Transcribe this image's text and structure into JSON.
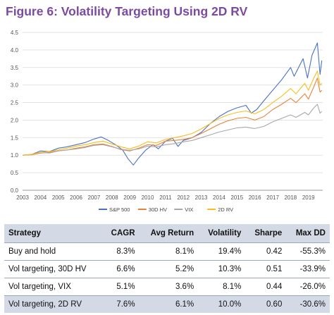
{
  "figure_title": "Figure 6: Volatility Targeting Using 2D RV",
  "chart_data": {
    "type": "line",
    "x_ticks": [
      "2003",
      "2004",
      "2005",
      "2006",
      "2007",
      "2008",
      "2009",
      "2010",
      "2011",
      "2012",
      "2013",
      "2014",
      "2015",
      "2016",
      "2017",
      "2018",
      "2019"
    ],
    "y_ticks": [
      "0.0",
      "0.5",
      "1.0",
      "1.5",
      "2.0",
      "2.5",
      "3.0",
      "3.5",
      "4.0",
      "4.5"
    ],
    "xlim": [
      2003,
      2019.8
    ],
    "ylim": [
      0,
      4.5
    ],
    "grid": "horizontal",
    "legend_position": "bottom-center",
    "series": [
      {
        "name": "S&P 500",
        "color": "#4a72c4",
        "width": 1.1,
        "points": [
          [
            2003,
            1.0
          ],
          [
            2003.5,
            1.02
          ],
          [
            2004,
            1.12
          ],
          [
            2004.5,
            1.1
          ],
          [
            2005,
            1.2
          ],
          [
            2005.5,
            1.24
          ],
          [
            2006,
            1.3
          ],
          [
            2006.5,
            1.36
          ],
          [
            2007,
            1.46
          ],
          [
            2007.4,
            1.52
          ],
          [
            2007.8,
            1.42
          ],
          [
            2008.2,
            1.3
          ],
          [
            2008.6,
            1.15
          ],
          [
            2008.9,
            0.9
          ],
          [
            2009.2,
            0.72
          ],
          [
            2009.5,
            0.92
          ],
          [
            2009.9,
            1.15
          ],
          [
            2010.3,
            1.3
          ],
          [
            2010.6,
            1.18
          ],
          [
            2011,
            1.4
          ],
          [
            2011.4,
            1.48
          ],
          [
            2011.7,
            1.25
          ],
          [
            2012,
            1.42
          ],
          [
            2012.5,
            1.5
          ],
          [
            2013,
            1.65
          ],
          [
            2013.5,
            1.9
          ],
          [
            2014,
            2.1
          ],
          [
            2014.5,
            2.25
          ],
          [
            2015,
            2.35
          ],
          [
            2015.5,
            2.42
          ],
          [
            2015.8,
            2.2
          ],
          [
            2016.1,
            2.3
          ],
          [
            2016.5,
            2.55
          ],
          [
            2017,
            2.85
          ],
          [
            2017.5,
            3.15
          ],
          [
            2018,
            3.5
          ],
          [
            2018.2,
            3.25
          ],
          [
            2018.7,
            3.75
          ],
          [
            2018.95,
            3.2
          ],
          [
            2019.2,
            3.85
          ],
          [
            2019.5,
            4.2
          ],
          [
            2019.65,
            3.3
          ],
          [
            2019.75,
            3.7
          ]
        ]
      },
      {
        "name": "30D HV",
        "color": "#e8823a",
        "width": 1.1,
        "points": [
          [
            2003,
            1.0
          ],
          [
            2003.5,
            1.01
          ],
          [
            2004,
            1.06
          ],
          [
            2004.5,
            1.08
          ],
          [
            2005,
            1.12
          ],
          [
            2005.5,
            1.15
          ],
          [
            2006,
            1.2
          ],
          [
            2006.5,
            1.24
          ],
          [
            2007,
            1.3
          ],
          [
            2007.5,
            1.32
          ],
          [
            2008,
            1.25
          ],
          [
            2008.5,
            1.16
          ],
          [
            2009,
            1.12
          ],
          [
            2009.5,
            1.2
          ],
          [
            2010,
            1.3
          ],
          [
            2010.5,
            1.28
          ],
          [
            2011,
            1.4
          ],
          [
            2011.5,
            1.42
          ],
          [
            2012,
            1.45
          ],
          [
            2012.5,
            1.5
          ],
          [
            2013,
            1.62
          ],
          [
            2013.5,
            1.75
          ],
          [
            2014,
            1.88
          ],
          [
            2014.5,
            1.98
          ],
          [
            2015,
            2.05
          ],
          [
            2015.5,
            2.08
          ],
          [
            2016,
            2.0
          ],
          [
            2016.5,
            2.1
          ],
          [
            2017,
            2.3
          ],
          [
            2017.5,
            2.45
          ],
          [
            2018,
            2.62
          ],
          [
            2018.3,
            2.5
          ],
          [
            2018.8,
            2.75
          ],
          [
            2019,
            2.6
          ],
          [
            2019.3,
            2.95
          ],
          [
            2019.5,
            3.2
          ],
          [
            2019.65,
            2.8
          ],
          [
            2019.75,
            2.85
          ]
        ]
      },
      {
        "name": "VIX",
        "color": "#a8a8a8",
        "width": 1.1,
        "points": [
          [
            2003,
            1.0
          ],
          [
            2003.5,
            1.02
          ],
          [
            2004,
            1.08
          ],
          [
            2004.5,
            1.06
          ],
          [
            2005,
            1.12
          ],
          [
            2005.5,
            1.15
          ],
          [
            2006,
            1.18
          ],
          [
            2006.5,
            1.22
          ],
          [
            2007,
            1.28
          ],
          [
            2007.5,
            1.3
          ],
          [
            2008,
            1.24
          ],
          [
            2008.5,
            1.17
          ],
          [
            2009,
            1.14
          ],
          [
            2009.5,
            1.18
          ],
          [
            2010,
            1.26
          ],
          [
            2010.5,
            1.24
          ],
          [
            2011,
            1.3
          ],
          [
            2011.5,
            1.33
          ],
          [
            2012,
            1.38
          ],
          [
            2012.5,
            1.42
          ],
          [
            2013,
            1.5
          ],
          [
            2013.5,
            1.58
          ],
          [
            2014,
            1.66
          ],
          [
            2014.5,
            1.72
          ],
          [
            2015,
            1.78
          ],
          [
            2015.5,
            1.8
          ],
          [
            2016,
            1.76
          ],
          [
            2016.5,
            1.82
          ],
          [
            2017,
            1.95
          ],
          [
            2017.5,
            2.05
          ],
          [
            2018,
            2.15
          ],
          [
            2018.3,
            2.08
          ],
          [
            2018.8,
            2.22
          ],
          [
            2019,
            2.15
          ],
          [
            2019.3,
            2.35
          ],
          [
            2019.5,
            2.45
          ],
          [
            2019.65,
            2.2
          ],
          [
            2019.75,
            2.25
          ]
        ]
      },
      {
        "name": "2D RV",
        "color": "#f7be1e",
        "width": 1.1,
        "points": [
          [
            2003,
            1.0
          ],
          [
            2003.5,
            1.02
          ],
          [
            2004,
            1.08
          ],
          [
            2004.5,
            1.1
          ],
          [
            2005,
            1.15
          ],
          [
            2005.5,
            1.2
          ],
          [
            2006,
            1.26
          ],
          [
            2006.5,
            1.3
          ],
          [
            2007,
            1.36
          ],
          [
            2007.5,
            1.4
          ],
          [
            2008,
            1.32
          ],
          [
            2008.5,
            1.24
          ],
          [
            2009,
            1.18
          ],
          [
            2009.5,
            1.26
          ],
          [
            2010,
            1.38
          ],
          [
            2010.5,
            1.35
          ],
          [
            2011,
            1.45
          ],
          [
            2011.5,
            1.5
          ],
          [
            2012,
            1.55
          ],
          [
            2012.5,
            1.62
          ],
          [
            2013,
            1.75
          ],
          [
            2013.5,
            1.9
          ],
          [
            2014,
            2.05
          ],
          [
            2014.5,
            2.15
          ],
          [
            2015,
            2.22
          ],
          [
            2015.5,
            2.26
          ],
          [
            2016,
            2.18
          ],
          [
            2016.5,
            2.3
          ],
          [
            2017,
            2.5
          ],
          [
            2017.5,
            2.68
          ],
          [
            2018,
            2.9
          ],
          [
            2018.3,
            2.75
          ],
          [
            2018.8,
            3.05
          ],
          [
            2019,
            2.85
          ],
          [
            2019.3,
            3.2
          ],
          [
            2019.5,
            3.4
          ],
          [
            2019.65,
            3.0
          ],
          [
            2019.75,
            3.05
          ]
        ]
      }
    ]
  },
  "table": {
    "headers": [
      "Strategy",
      "CAGR",
      "Avg Return",
      "Volatility",
      "Sharpe",
      "Max DD"
    ],
    "rows": [
      [
        "Buy and hold",
        "8.3%",
        "8.1%",
        "19.4%",
        "0.42",
        "-55.3%"
      ],
      [
        "Vol targeting, 30D HV",
        "6.6%",
        "5.2%",
        "10.3%",
        "0.51",
        "-33.9%"
      ],
      [
        "Vol targeting, VIX",
        "5.1%",
        "3.6%",
        "8.1%",
        "0.44",
        "-26.0%"
      ],
      [
        "Vol targeting, 2D RV",
        "7.6%",
        "6.1%",
        "10.0%",
        "0.60",
        "-30.6%"
      ]
    ]
  }
}
